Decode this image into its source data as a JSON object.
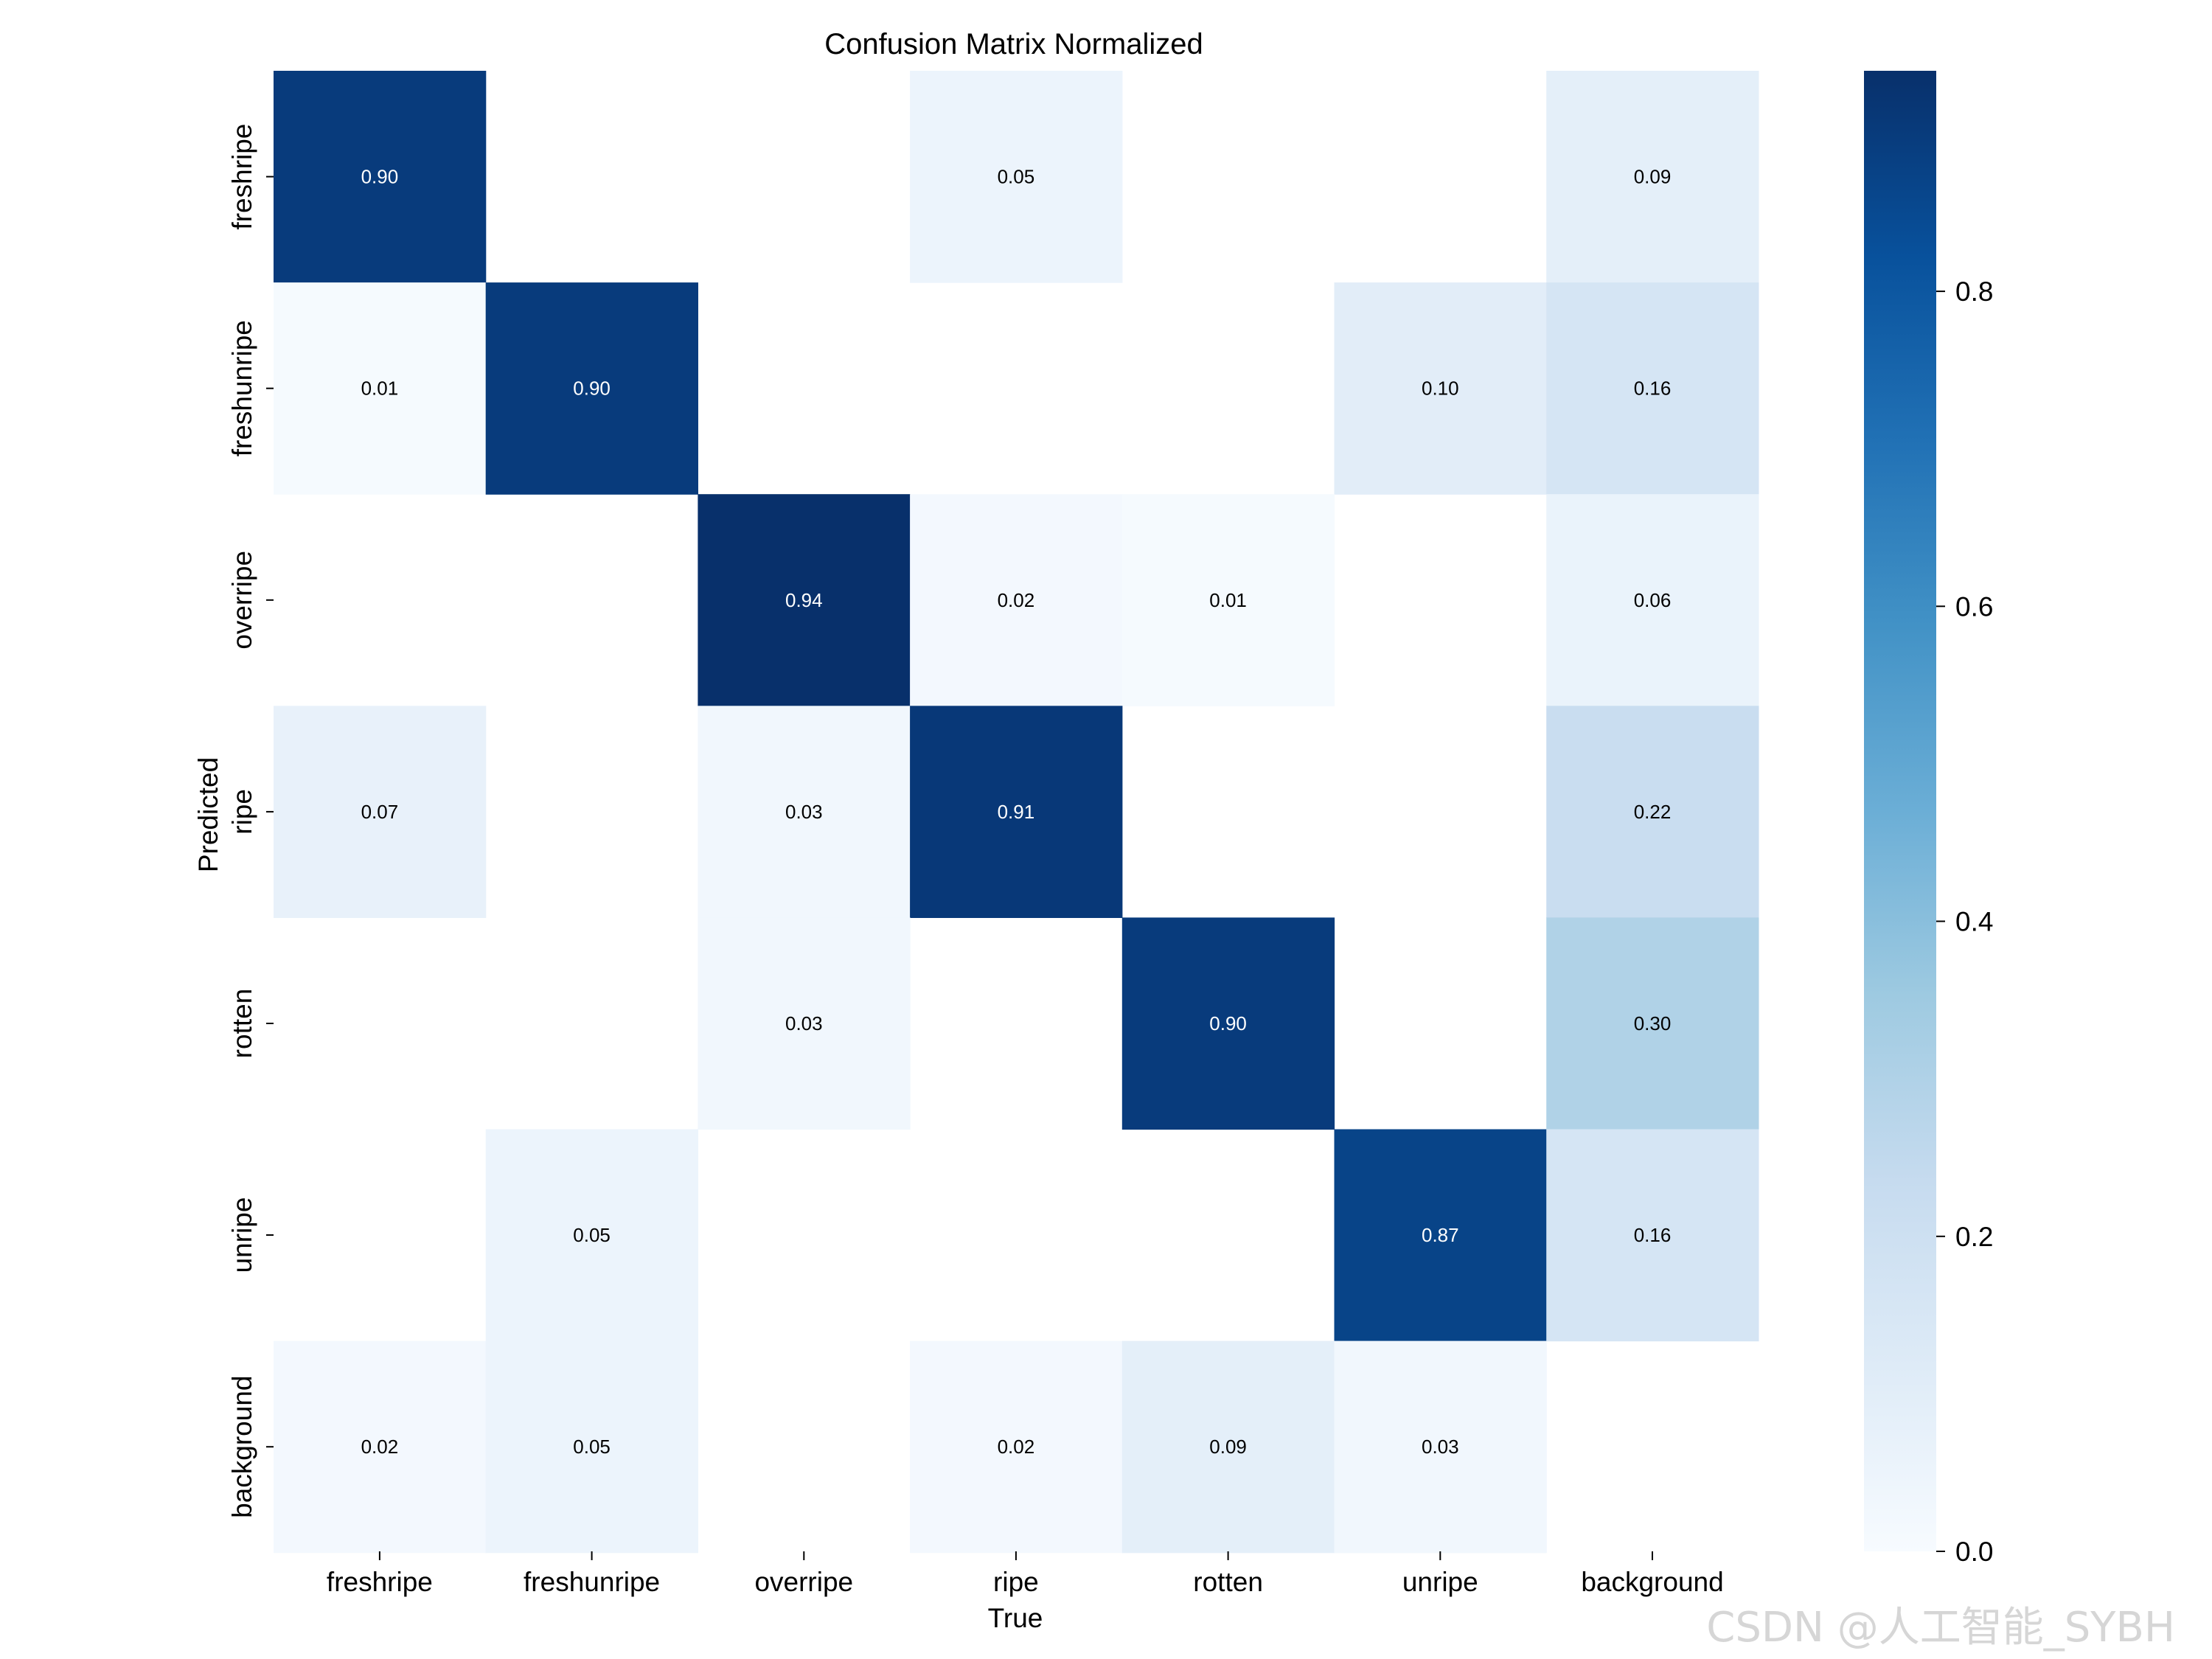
{
  "chart_data": {
    "type": "heatmap",
    "title": "Confusion Matrix Normalized",
    "xlabel": "True",
    "ylabel": "Predicted",
    "x_categories": [
      "freshripe",
      "freshunripe",
      "overripe",
      "ripe",
      "rotten",
      "unripe",
      "background"
    ],
    "y_categories": [
      "freshripe",
      "freshunripe",
      "overripe",
      "ripe",
      "rotten",
      "unripe",
      "background"
    ],
    "values": [
      [
        0.9,
        null,
        null,
        0.05,
        null,
        null,
        0.09
      ],
      [
        0.01,
        0.9,
        null,
        null,
        null,
        0.1,
        0.16
      ],
      [
        null,
        null,
        0.94,
        0.02,
        0.01,
        null,
        0.06
      ],
      [
        0.07,
        null,
        0.03,
        0.91,
        null,
        null,
        0.22
      ],
      [
        null,
        null,
        0.03,
        null,
        0.9,
        null,
        0.3
      ],
      [
        null,
        0.05,
        null,
        null,
        null,
        0.87,
        0.16
      ],
      [
        0.02,
        0.05,
        null,
        0.02,
        0.09,
        0.03,
        null
      ]
    ],
    "value_format": "0.00",
    "colorbar": {
      "colormap": "Blues",
      "range": [
        0.0,
        0.94
      ],
      "ticks": [
        0.0,
        0.2,
        0.4,
        0.6,
        0.8
      ],
      "tick_labels": [
        "0.0",
        "0.2",
        "0.4",
        "0.6",
        "0.8"
      ]
    },
    "grid": false,
    "empty_cells": "not drawn (value below threshold)"
  },
  "watermark": "CSDN @人工智能_SYBH",
  "colors": {
    "low": "#f7fbff",
    "high": "#08306b",
    "label_dark": "#000000",
    "label_light": "#ffffff",
    "watermark": "#d6d6d6"
  }
}
